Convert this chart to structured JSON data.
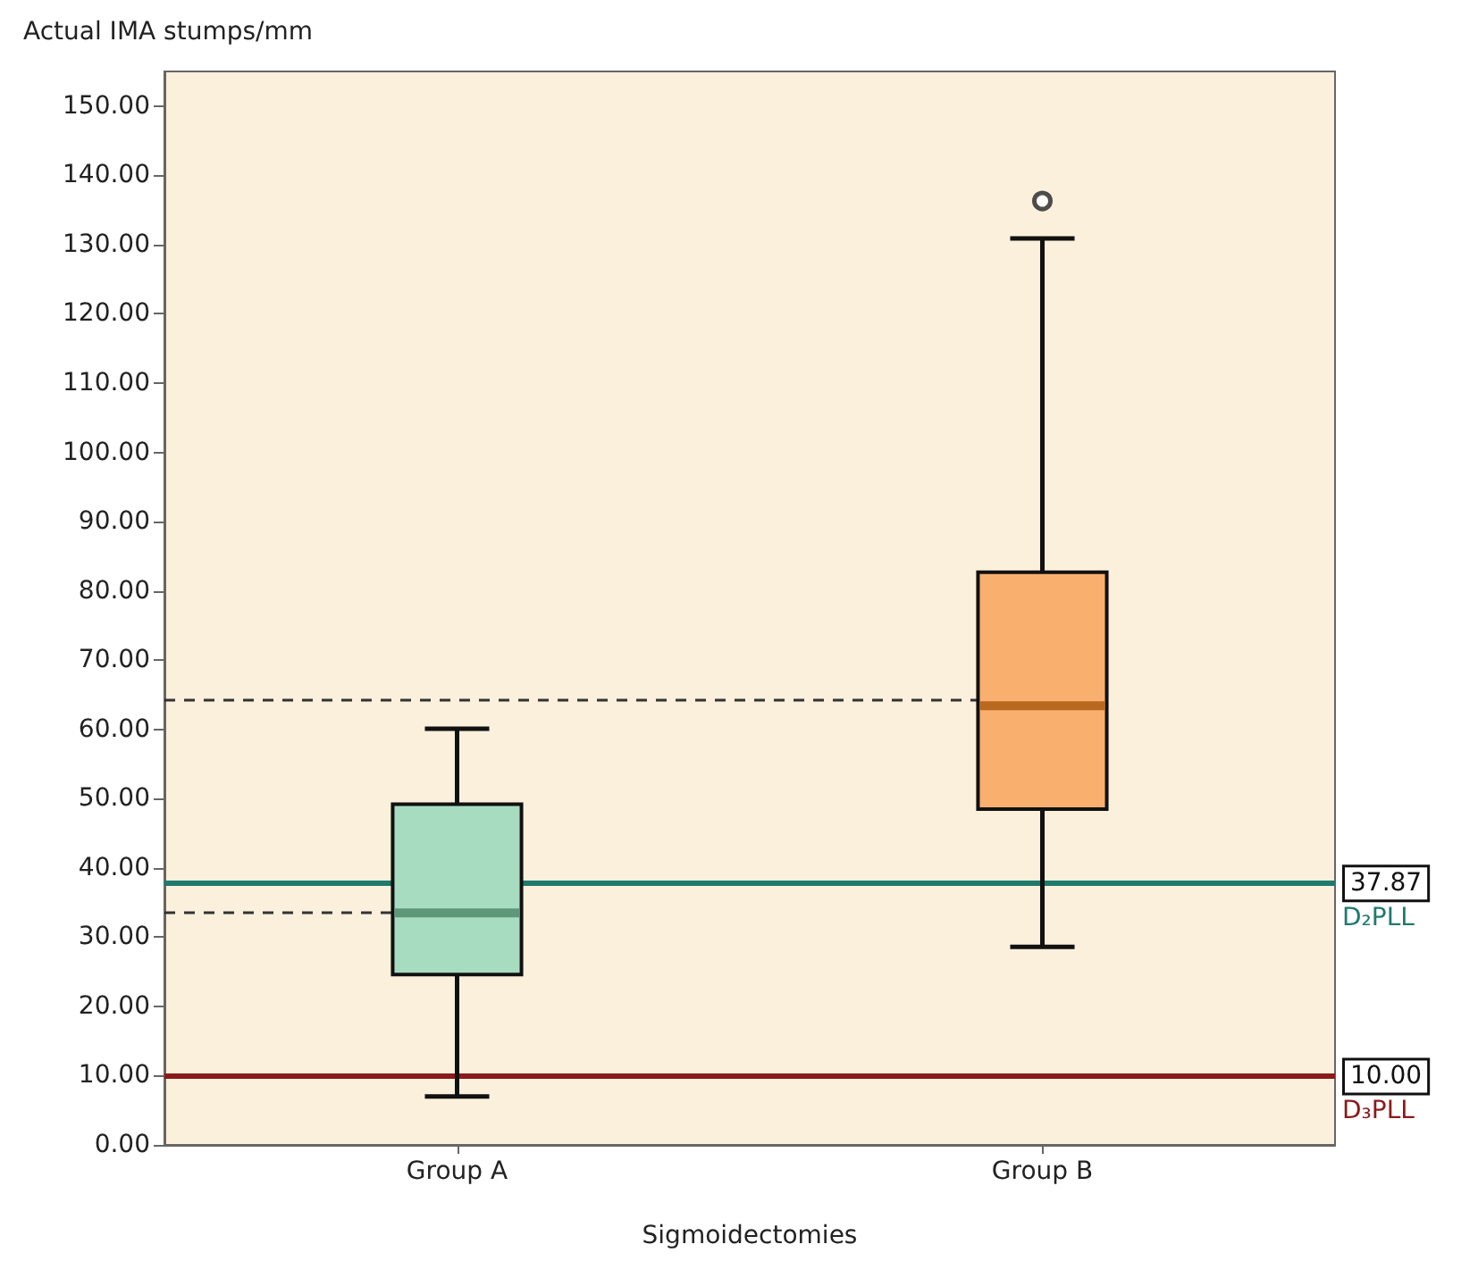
{
  "chart_data": {
    "type": "box",
    "ylabel": "Actual IMA stumps/mm",
    "xlabel": "Sigmoidectomies",
    "categories": [
      "Group A",
      "Group B"
    ],
    "colors": [
      "#a8dcc0",
      "#f9b06e"
    ],
    "boxes": [
      {
        "low": 7.0,
        "q1": 24.6,
        "median": 33.5,
        "q3": 49.2,
        "high": 60.1
      },
      {
        "low": 28.6,
        "q1": 48.5,
        "median": 63.4,
        "q3": 82.7,
        "high": 130.9,
        "outliers": [
          136.3
        ]
      }
    ],
    "ylim": [
      0,
      155
    ],
    "yticks": [
      {
        "value": 0,
        "label": "0.00"
      },
      {
        "value": 10,
        "label": "10.00"
      },
      {
        "value": 20,
        "label": "20.00"
      },
      {
        "value": 30,
        "label": "30.00"
      },
      {
        "value": 40,
        "label": "40.00"
      },
      {
        "value": 50,
        "label": "50.00"
      },
      {
        "value": 60,
        "label": "60.00"
      },
      {
        "value": 70,
        "label": "70.00"
      },
      {
        "value": 80,
        "label": "80.00"
      },
      {
        "value": 90,
        "label": "90.00"
      },
      {
        "value": 100,
        "label": "100.00"
      },
      {
        "value": 110,
        "label": "110.00"
      },
      {
        "value": 120,
        "label": "120.00"
      },
      {
        "value": 130,
        "label": "130.00"
      },
      {
        "value": 140,
        "label": "140.00"
      },
      {
        "value": 150,
        "label": "150.00"
      }
    ],
    "ref_lines": [
      {
        "axis": "y",
        "value": 64.2,
        "label": null,
        "color": "#333333",
        "line_style": "dashed"
      },
      {
        "axis": "y",
        "value": 33.7,
        "label": null,
        "color": "#333333",
        "line_style": "dashed"
      },
      {
        "axis": "y",
        "value": 37.87,
        "label": "37.87",
        "color": "#1f7a6e",
        "line_style": "solid"
      },
      {
        "axis": "y",
        "value": 10.0,
        "label": "10.00",
        "color": "#8b1a1a",
        "line_style": "solid"
      }
    ],
    "annotations": [
      "D₂PLL",
      "D₃PLL"
    ],
    "grid": false
  }
}
